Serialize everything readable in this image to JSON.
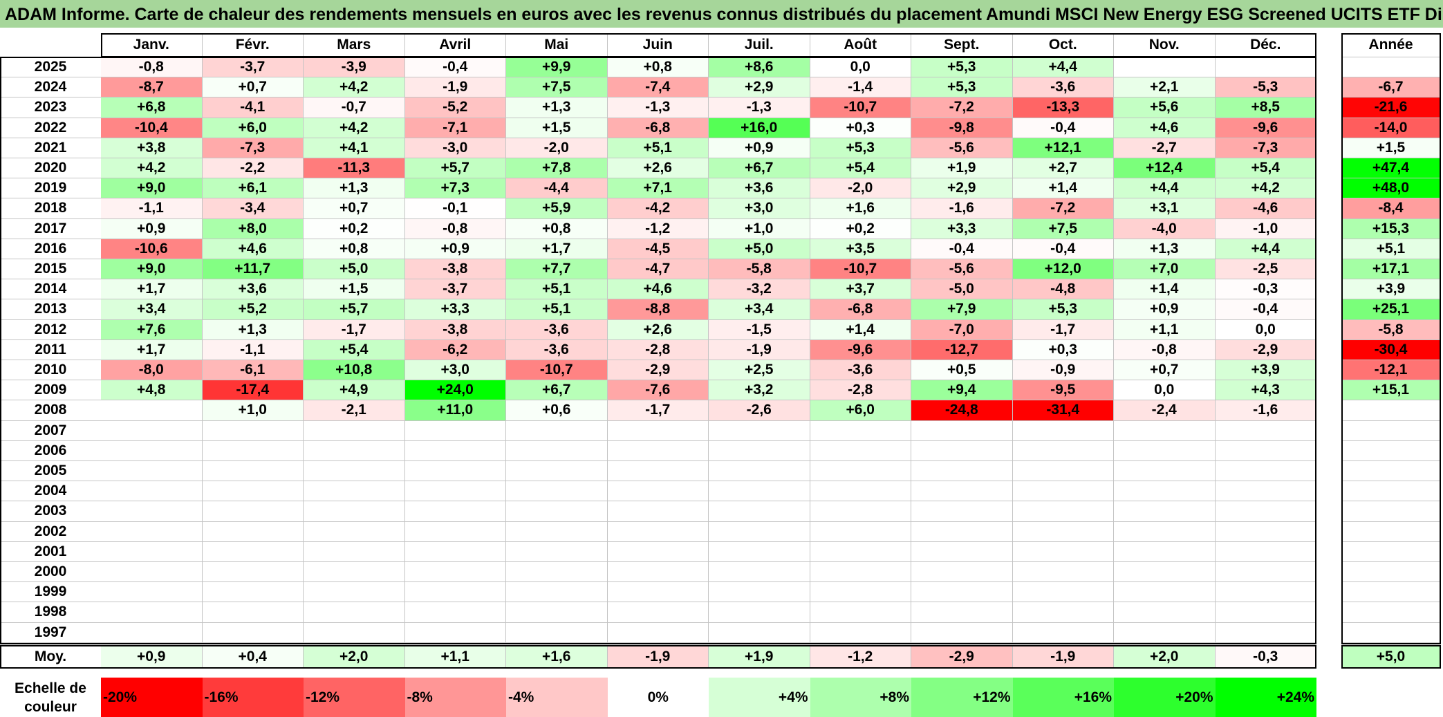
{
  "title": "ADAM Informe. Carte de chaleur des rendements mensuels en euros avec les revenus connus distribués du placement Amundi MSCI New Energy ESG Screened UCITS ETF Di",
  "chart_data": {
    "type": "heatmap",
    "months": [
      "Janv.",
      "Févr.",
      "Mars",
      "Avril",
      "Mai",
      "Juin",
      "Juil.",
      "Août",
      "Sept.",
      "Oct.",
      "Nov.",
      "Déc."
    ],
    "year_header": "Année",
    "avg_label": "Moy.",
    "rows": [
      {
        "year": "2025",
        "values": [
          -0.8,
          -3.7,
          -3.9,
          -0.4,
          9.9,
          0.8,
          8.6,
          -0.0,
          5.3,
          4.4,
          null,
          null
        ],
        "annual": null
      },
      {
        "year": "2024",
        "values": [
          -8.7,
          0.7,
          4.2,
          -1.9,
          7.5,
          -7.4,
          2.9,
          -1.4,
          5.3,
          -3.6,
          2.1,
          -5.3
        ],
        "annual": -6.7
      },
      {
        "year": "2023",
        "values": [
          6.8,
          -4.1,
          -0.7,
          -5.2,
          1.3,
          -1.3,
          -1.3,
          -10.7,
          -7.2,
          -13.3,
          5.6,
          8.5
        ],
        "annual": -21.6
      },
      {
        "year": "2022",
        "values": [
          -10.4,
          6.0,
          4.2,
          -7.1,
          1.5,
          -6.8,
          16.0,
          0.3,
          -9.8,
          -0.4,
          4.6,
          -9.6
        ],
        "annual": -14.0
      },
      {
        "year": "2021",
        "values": [
          3.8,
          -7.3,
          4.1,
          -3.0,
          -2.0,
          5.1,
          0.9,
          5.3,
          -5.6,
          12.1,
          -2.7,
          -7.3
        ],
        "annual": 1.5
      },
      {
        "year": "2020",
        "values": [
          4.2,
          -2.2,
          -11.3,
          5.7,
          7.8,
          2.6,
          6.7,
          5.4,
          1.9,
          2.7,
          12.4,
          5.4
        ],
        "annual": 47.4
      },
      {
        "year": "2019",
        "values": [
          9.0,
          6.1,
          1.3,
          7.3,
          -4.4,
          7.1,
          3.6,
          -2.0,
          2.9,
          1.4,
          4.4,
          4.2
        ],
        "annual": 48.0
      },
      {
        "year": "2018",
        "values": [
          -1.1,
          -3.4,
          0.7,
          -0.1,
          5.9,
          -4.2,
          3.0,
          1.6,
          -1.6,
          -7.2,
          3.1,
          -4.6
        ],
        "annual": -8.4
      },
      {
        "year": "2017",
        "values": [
          0.9,
          8.0,
          0.2,
          -0.8,
          0.8,
          -1.2,
          1.0,
          0.2,
          3.3,
          7.5,
          -4.0,
          -1.0
        ],
        "annual": 15.3
      },
      {
        "year": "2016",
        "values": [
          -10.6,
          4.6,
          0.8,
          0.9,
          1.7,
          -4.5,
          5.0,
          3.5,
          -0.4,
          -0.4,
          1.3,
          4.4
        ],
        "annual": 5.1
      },
      {
        "year": "2015",
        "values": [
          9.0,
          11.7,
          5.0,
          -3.8,
          7.7,
          -4.7,
          -5.8,
          -10.7,
          -5.6,
          12.0,
          7.0,
          -2.5
        ],
        "annual": 17.1
      },
      {
        "year": "2014",
        "values": [
          1.7,
          3.6,
          1.5,
          -3.7,
          5.1,
          4.6,
          -3.2,
          3.7,
          -5.0,
          -4.8,
          1.4,
          -0.3
        ],
        "annual": 3.9
      },
      {
        "year": "2013",
        "values": [
          3.4,
          5.2,
          5.7,
          3.3,
          5.1,
          -8.8,
          3.4,
          -6.8,
          7.9,
          5.3,
          0.9,
          -0.4
        ],
        "annual": 25.1
      },
      {
        "year": "2012",
        "values": [
          7.6,
          1.3,
          -1.7,
          -3.8,
          -3.6,
          2.6,
          -1.5,
          1.4,
          -7.0,
          -1.7,
          1.1,
          0.0
        ],
        "annual": -5.8
      },
      {
        "year": "2011",
        "values": [
          1.7,
          -1.1,
          5.4,
          -6.2,
          -3.6,
          -2.8,
          -1.9,
          -9.6,
          -12.7,
          0.3,
          -0.8,
          -2.9
        ],
        "annual": -30.4
      },
      {
        "year": "2010",
        "values": [
          -8.0,
          -6.1,
          10.8,
          3.0,
          -10.7,
          -2.9,
          2.5,
          -3.6,
          0.5,
          -0.9,
          0.7,
          3.9
        ],
        "annual": -12.1
      },
      {
        "year": "2009",
        "values": [
          4.8,
          -17.4,
          4.9,
          24.0,
          6.7,
          -7.6,
          3.2,
          -2.8,
          9.4,
          -9.5,
          0.0,
          4.3
        ],
        "annual": 15.1
      },
      {
        "year": "2008",
        "values": [
          null,
          1.0,
          -2.1,
          11.0,
          0.6,
          -1.7,
          -2.6,
          6.0,
          -24.8,
          -31.4,
          -2.4,
          -1.6
        ],
        "annual": null
      },
      {
        "year": "2007",
        "values": [
          null,
          null,
          null,
          null,
          null,
          null,
          null,
          null,
          null,
          null,
          null,
          null
        ],
        "annual": null
      },
      {
        "year": "2006",
        "values": [
          null,
          null,
          null,
          null,
          null,
          null,
          null,
          null,
          null,
          null,
          null,
          null
        ],
        "annual": null
      },
      {
        "year": "2005",
        "values": [
          null,
          null,
          null,
          null,
          null,
          null,
          null,
          null,
          null,
          null,
          null,
          null
        ],
        "annual": null
      },
      {
        "year": "2004",
        "values": [
          null,
          null,
          null,
          null,
          null,
          null,
          null,
          null,
          null,
          null,
          null,
          null
        ],
        "annual": null
      },
      {
        "year": "2003",
        "values": [
          null,
          null,
          null,
          null,
          null,
          null,
          null,
          null,
          null,
          null,
          null,
          null
        ],
        "annual": null
      },
      {
        "year": "2002",
        "values": [
          null,
          null,
          null,
          null,
          null,
          null,
          null,
          null,
          null,
          null,
          null,
          null
        ],
        "annual": null
      },
      {
        "year": "2001",
        "values": [
          null,
          null,
          null,
          null,
          null,
          null,
          null,
          null,
          null,
          null,
          null,
          null
        ],
        "annual": null
      },
      {
        "year": "2000",
        "values": [
          null,
          null,
          null,
          null,
          null,
          null,
          null,
          null,
          null,
          null,
          null,
          null
        ],
        "annual": null
      },
      {
        "year": "1999",
        "values": [
          null,
          null,
          null,
          null,
          null,
          null,
          null,
          null,
          null,
          null,
          null,
          null
        ],
        "annual": null
      },
      {
        "year": "1998",
        "values": [
          null,
          null,
          null,
          null,
          null,
          null,
          null,
          null,
          null,
          null,
          null,
          null
        ],
        "annual": null
      },
      {
        "year": "1997",
        "values": [
          null,
          null,
          null,
          null,
          null,
          null,
          null,
          null,
          null,
          null,
          null,
          null
        ],
        "annual": null
      }
    ],
    "average": {
      "values": [
        0.9,
        0.4,
        2.0,
        1.1,
        1.6,
        -1.9,
        1.9,
        -1.2,
        -2.9,
        -1.9,
        2.0,
        -0.3
      ],
      "annual": 5.0
    },
    "scale": {
      "label_line1": "Echelle de",
      "label_line2": "couleur",
      "steps": [
        "-20%",
        "-16%",
        "-12%",
        "-8%",
        "-4%",
        "0%",
        "+4%",
        "+8%",
        "+12%",
        "+16%",
        "+20%",
        "+24%"
      ],
      "colors": [
        "#ff0000",
        "#ff3b3b",
        "#ff6464",
        "#ff9696",
        "#ffc8c8",
        "#ffffff",
        "#d6ffd6",
        "#adffad",
        "#84ff84",
        "#5aff5a",
        "#2dff2d",
        "#00ff00"
      ]
    }
  }
}
